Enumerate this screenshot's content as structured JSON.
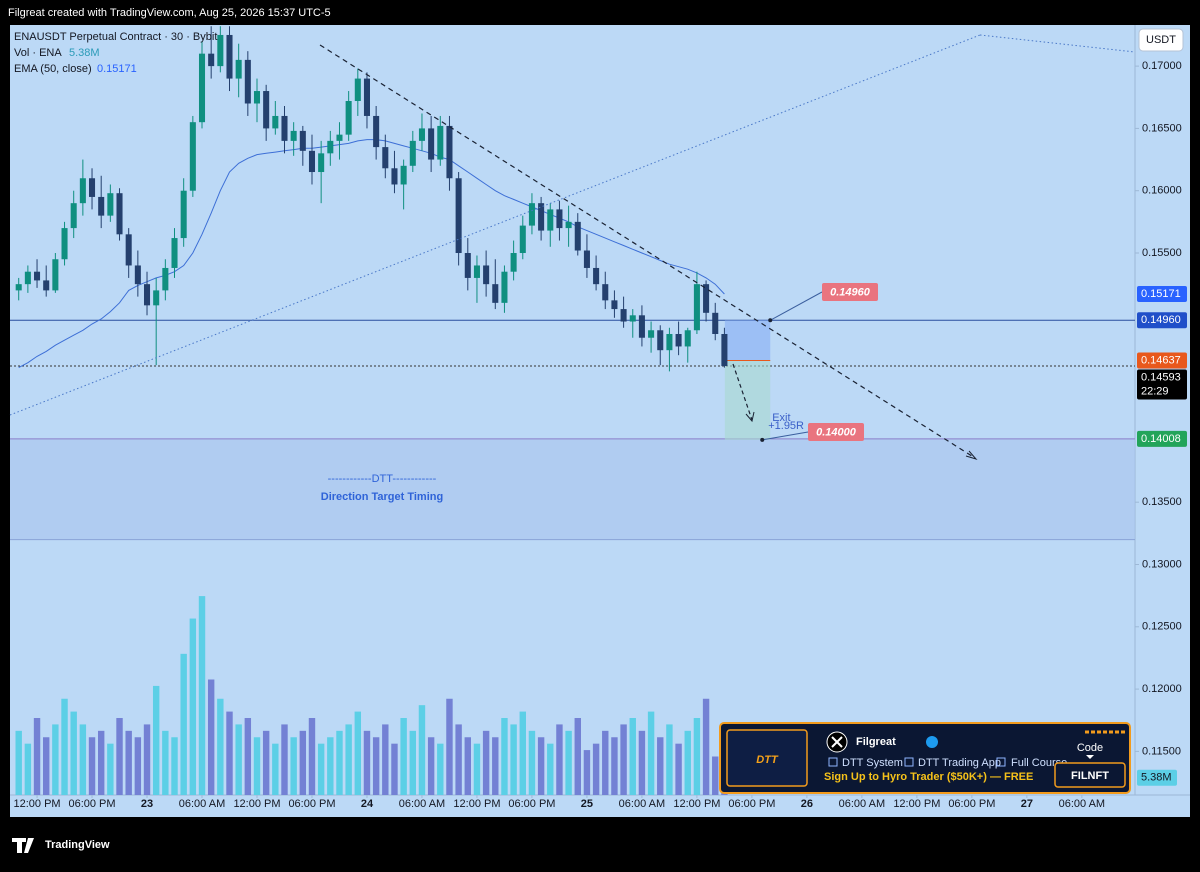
{
  "header": {
    "credit": "Filgreat created with TradingView.com, Aug 25, 2026 15:37 UTC-5",
    "brand": "TradingView"
  },
  "chart_data": {
    "type": "candlestick",
    "title": "ENAUSDT Perpetual Contract · 30 · Bybit",
    "currency": "USDT",
    "up_color": "#0f8f80",
    "down_color": "#24406e",
    "x": [
      10,
      11,
      12,
      13,
      14,
      15,
      16,
      17,
      18,
      19,
      20,
      21,
      22,
      23,
      24,
      25,
      26,
      27,
      28,
      29,
      30,
      31,
      32,
      33,
      34,
      35,
      36,
      37,
      38,
      39,
      40,
      41,
      42,
      43,
      44,
      45,
      46,
      47,
      48,
      49,
      50,
      51,
      52,
      53,
      54,
      55,
      56,
      57,
      58,
      59,
      60,
      61,
      62,
      63,
      64,
      65,
      66,
      67,
      68,
      69,
      70,
      71,
      72,
      73,
      74,
      75,
      76,
      77,
      78,
      79,
      80,
      81,
      82,
      83,
      84,
      85,
      86,
      87
    ],
    "open": [
      0.152,
      0.1525,
      0.1535,
      0.1528,
      0.152,
      0.1545,
      0.157,
      0.159,
      0.161,
      0.1595,
      0.158,
      0.1598,
      0.1565,
      0.154,
      0.1525,
      0.1508,
      0.152,
      0.1538,
      0.1562,
      0.16,
      0.1655,
      0.171,
      0.17,
      0.1725,
      0.169,
      0.1705,
      0.167,
      0.168,
      0.165,
      0.166,
      0.164,
      0.1648,
      0.1632,
      0.1615,
      0.163,
      0.164,
      0.1645,
      0.1672,
      0.169,
      0.166,
      0.1635,
      0.1618,
      0.1605,
      0.162,
      0.164,
      0.165,
      0.1625,
      0.1652,
      0.161,
      0.155,
      0.153,
      0.154,
      0.1525,
      0.151,
      0.1535,
      0.155,
      0.1572,
      0.159,
      0.1568,
      0.1585,
      0.157,
      0.1575,
      0.1552,
      0.1538,
      0.1525,
      0.1512,
      0.1505,
      0.1495,
      0.15,
      0.1482,
      0.1488,
      0.1472,
      0.1485,
      0.1475,
      0.1488,
      0.1525,
      0.1502,
      0.1485
    ],
    "high": [
      0.153,
      0.154,
      0.1545,
      0.154,
      0.155,
      0.1575,
      0.16,
      0.1625,
      0.1618,
      0.1612,
      0.1605,
      0.1602,
      0.157,
      0.1552,
      0.1535,
      0.153,
      0.1545,
      0.157,
      0.161,
      0.166,
      0.172,
      0.1732,
      0.1732,
      0.1732,
      0.1718,
      0.1712,
      0.169,
      0.1685,
      0.1672,
      0.1668,
      0.1655,
      0.1652,
      0.1645,
      0.164,
      0.1648,
      0.1655,
      0.168,
      0.1698,
      0.1695,
      0.1668,
      0.1645,
      0.1632,
      0.1625,
      0.1648,
      0.1662,
      0.166,
      0.166,
      0.166,
      0.1615,
      0.1562,
      0.1548,
      0.1552,
      0.1545,
      0.154,
      0.156,
      0.158,
      0.1598,
      0.1595,
      0.159,
      0.1592,
      0.1588,
      0.1582,
      0.1565,
      0.1548,
      0.1535,
      0.152,
      0.1515,
      0.1505,
      0.1508,
      0.1495,
      0.1492,
      0.149,
      0.1495,
      0.149,
      0.1535,
      0.1528,
      0.151,
      0.149
    ],
    "low": [
      0.1512,
      0.1518,
      0.1522,
      0.1515,
      0.1518,
      0.154,
      0.1562,
      0.158,
      0.1585,
      0.157,
      0.1575,
      0.156,
      0.153,
      0.1515,
      0.15,
      0.146,
      0.1512,
      0.153,
      0.1555,
      0.1595,
      0.165,
      0.169,
      0.1695,
      0.168,
      0.1675,
      0.166,
      0.1655,
      0.164,
      0.1645,
      0.163,
      0.1628,
      0.162,
      0.1605,
      0.159,
      0.162,
      0.1625,
      0.164,
      0.166,
      0.165,
      0.1625,
      0.161,
      0.1598,
      0.1585,
      0.1615,
      0.1632,
      0.1615,
      0.162,
      0.16,
      0.154,
      0.152,
      0.151,
      0.1515,
      0.1505,
      0.1502,
      0.1528,
      0.1545,
      0.1565,
      0.156,
      0.1555,
      0.156,
      0.1555,
      0.1548,
      0.153,
      0.152,
      0.1505,
      0.1498,
      0.149,
      0.1482,
      0.1475,
      0.147,
      0.146,
      0.1455,
      0.1468,
      0.1462,
      0.1485,
      0.1495,
      0.148,
      0.1458
    ],
    "close": [
      0.1525,
      0.1535,
      0.1528,
      0.152,
      0.1545,
      0.157,
      0.159,
      0.161,
      0.1595,
      0.158,
      0.1598,
      0.1565,
      0.154,
      0.1525,
      0.1508,
      0.152,
      0.1538,
      0.1562,
      0.16,
      0.1655,
      0.171,
      0.17,
      0.1725,
      0.169,
      0.1705,
      0.167,
      0.168,
      0.165,
      0.166,
      0.164,
      0.1648,
      0.1632,
      0.1615,
      0.163,
      0.164,
      0.1645,
      0.1672,
      0.169,
      0.166,
      0.1635,
      0.1618,
      0.1605,
      0.162,
      0.164,
      0.165,
      0.1625,
      0.1652,
      0.161,
      0.155,
      0.153,
      0.154,
      0.1525,
      0.151,
      0.1535,
      0.155,
      0.1572,
      0.159,
      0.1568,
      0.1585,
      0.157,
      0.1575,
      0.1552,
      0.1538,
      0.1525,
      0.1512,
      0.1505,
      0.1495,
      0.15,
      0.1482,
      0.1488,
      0.1472,
      0.1485,
      0.1475,
      0.1488,
      0.1525,
      0.1502,
      0.1485,
      0.14593
    ],
    "ema": {
      "name": "EMA (50, close)",
      "color": "#3d6fd6",
      "values": [
        0.1458,
        0.1462,
        0.1467,
        0.1471,
        0.1476,
        0.148,
        0.1484,
        0.1488,
        0.1493,
        0.1497,
        0.1503,
        0.151,
        0.152,
        0.1524,
        0.1527,
        0.153,
        0.1532,
        0.1535,
        0.154,
        0.155,
        0.1565,
        0.1582,
        0.16,
        0.1615,
        0.1622,
        0.1626,
        0.1629,
        0.163,
        0.1631,
        0.1632,
        0.1633,
        0.1634,
        0.1634,
        0.1635,
        0.1636,
        0.1637,
        0.1638,
        0.164,
        0.1641,
        0.1641,
        0.164,
        0.1638,
        0.1636,
        0.1634,
        0.1632,
        0.163,
        0.1627,
        0.1625,
        0.162,
        0.1615,
        0.161,
        0.1605,
        0.16,
        0.1596,
        0.1593,
        0.159,
        0.1587,
        0.1584,
        0.1581,
        0.1578,
        0.1575,
        0.1571,
        0.1568,
        0.1565,
        0.1562,
        0.1559,
        0.1556,
        0.1553,
        0.155,
        0.1547,
        0.1544,
        0.1541,
        0.1539,
        0.1537,
        0.1534,
        0.153,
        0.1525,
        0.15171
      ]
    },
    "volume": {
      "name": "Vol · ENA",
      "up_color": "#5ccfe6",
      "down_color": "#7381d4",
      "lim": [
        0,
        240
      ],
      "last_label": "5.38M",
      "values": [
        20,
        16,
        24,
        18,
        22,
        30,
        26,
        22,
        18,
        20,
        16,
        24,
        20,
        18,
        22,
        34,
        20,
        18,
        44,
        55,
        62,
        36,
        30,
        26,
        22,
        24,
        18,
        20,
        16,
        22,
        18,
        20,
        24,
        16,
        18,
        20,
        22,
        26,
        20,
        18,
        22,
        16,
        24,
        20,
        28,
        18,
        16,
        30,
        22,
        18,
        16,
        20,
        18,
        24,
        22,
        26,
        20,
        18,
        16,
        22,
        20,
        24,
        14,
        16,
        20,
        18,
        22,
        24,
        20,
        26,
        18,
        22,
        16,
        20,
        24,
        30,
        12,
        5.38
      ]
    },
    "ylim": [
      0.1115,
      0.1733
    ],
    "yticks": [
      {
        "value": 0.115,
        "label": "0.11500"
      },
      {
        "value": 0.12,
        "label": "0.12000"
      },
      {
        "value": 0.125,
        "label": "0.12500"
      },
      {
        "value": 0.13,
        "label": "0.13000"
      },
      {
        "value": 0.135,
        "label": "0.13500"
      },
      {
        "value": 0.155,
        "label": "0.15500"
      },
      {
        "value": 0.16,
        "label": "0.16000"
      },
      {
        "value": 0.165,
        "label": "0.16500"
      },
      {
        "value": 0.17,
        "label": "0.17000"
      }
    ],
    "xlim": [
      9.05,
      131.8
    ],
    "xticks": [
      {
        "value": 12,
        "label": "12:00 PM"
      },
      {
        "value": 18,
        "label": "06:00 PM"
      },
      {
        "value": 24,
        "label": "23"
      },
      {
        "value": 30,
        "label": "06:00 AM"
      },
      {
        "value": 36,
        "label": "12:00 PM"
      },
      {
        "value": 42,
        "label": "06:00 PM"
      },
      {
        "value": 48,
        "label": "24"
      },
      {
        "value": 54,
        "label": "06:00 AM"
      },
      {
        "value": 60,
        "label": "12:00 PM"
      },
      {
        "value": 66,
        "label": "06:00 PM"
      },
      {
        "value": 72,
        "label": "25"
      },
      {
        "value": 78,
        "label": "06:00 AM"
      },
      {
        "value": 84,
        "label": "12:00 PM"
      },
      {
        "value": 90,
        "label": "06:00 PM"
      },
      {
        "value": 96,
        "label": "26"
      },
      {
        "value": 102,
        "label": "06:00 AM"
      },
      {
        "value": 108,
        "label": "12:00 PM"
      },
      {
        "value": 114,
        "label": "06:00 PM"
      },
      {
        "value": 120,
        "label": "27"
      },
      {
        "value": 126,
        "label": "06:00 AM"
      }
    ],
    "price_labels": [
      {
        "value": 0.15171,
        "label": "0.15171",
        "color": "#2962ff"
      },
      {
        "value": 0.1496,
        "label": "0.14960",
        "color": "#1f4fc9",
        "line": "solid"
      },
      {
        "value": 0.14637,
        "label": "0.14637",
        "color": "#e8581c"
      },
      {
        "value": 0.14593,
        "label": "0.14593",
        "color": "#000000",
        "line": "dotted"
      },
      {
        "value": 0.14008,
        "label": "0.14008",
        "color": "#22a45a",
        "line": "solid"
      }
    ],
    "countdown": "22:29",
    "position": {
      "x": [
        87.05,
        92
      ],
      "stop": 0.1496,
      "entry": 0.14637,
      "target": 0.14,
      "stop_label": "0.14960",
      "target_label": "0.14000",
      "exit_text": "Exit",
      "r_text": "+1.95R"
    },
    "zone": {
      "low": 0.132,
      "high": 0.14008,
      "line1": "------------DTT------------",
      "line2": "Direction Target Timing"
    }
  },
  "promo": {
    "logo": "DTT",
    "name": "Filgreat",
    "links": [
      "DTT System",
      "DTT Trading App",
      "Full Course"
    ],
    "offer": "Sign Up to Hyro Trader ($50K+) — FREE",
    "code_label": "Code",
    "code": "FILNFT"
  }
}
